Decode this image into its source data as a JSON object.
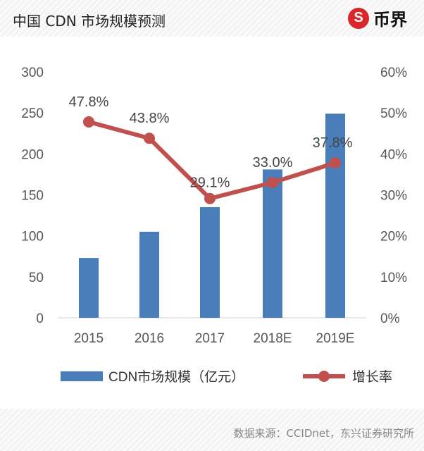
{
  "header": {
    "title": "中国 CDN 市场规模预测",
    "logo_text": "币界",
    "logo_mark": "S"
  },
  "footer": {
    "source": "数据来源：CCIDnet，东兴证券研究所"
  },
  "colors": {
    "bar": "#4a7ebb",
    "line": "#c0504d",
    "axis_text": "#555555"
  },
  "chart_data": {
    "type": "bar+line",
    "title": "中国 CDN 市场规模预测",
    "categories": [
      "2015",
      "2016",
      "2017",
      "2018E",
      "2019E"
    ],
    "series": [
      {
        "name": "CDN市场规模（亿元）",
        "type": "bar",
        "axis": "left",
        "values": [
          73,
          105,
          135,
          181,
          249
        ]
      },
      {
        "name": "增长率",
        "type": "line",
        "axis": "right",
        "values": [
          47.8,
          43.8,
          29.1,
          33.0,
          37.8
        ],
        "labels": [
          "47.8%",
          "43.8%",
          "29.1%",
          "33.0%",
          "37.8%"
        ]
      }
    ],
    "y_left": {
      "range": [
        0,
        300
      ],
      "ticks": [
        "0",
        "50",
        "100",
        "150",
        "200",
        "250",
        "300"
      ]
    },
    "y_right": {
      "range": [
        0,
        60
      ],
      "ticks": [
        "0%",
        "10%",
        "20%",
        "30%",
        "40%",
        "50%",
        "60%"
      ]
    },
    "grid": false,
    "legend": "bottom"
  }
}
